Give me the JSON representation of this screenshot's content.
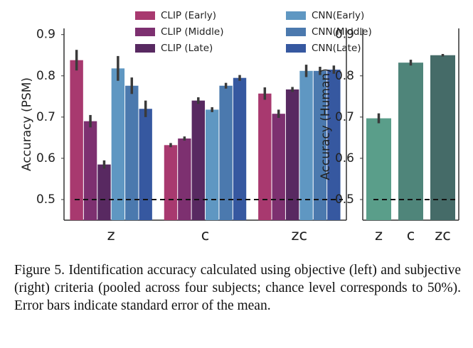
{
  "chart_data": [
    {
      "type": "bar",
      "ylabel": "Accuracy (PSM)",
      "categories": [
        "z",
        "c",
        "zc"
      ],
      "series": [
        {
          "name": "CLIP (Early)",
          "color": "#a8396f",
          "values": [
            0.838,
            0.632,
            0.757
          ],
          "errors": [
            0.025,
            0.005,
            0.015
          ]
        },
        {
          "name": "CLIP (Middle)",
          "color": "#7d3070",
          "values": [
            0.69,
            0.648,
            0.708
          ],
          "errors": [
            0.015,
            0.005,
            0.01
          ]
        },
        {
          "name": "CLIP (Late)",
          "color": "#582961",
          "values": [
            0.585,
            0.74,
            0.767
          ],
          "errors": [
            0.01,
            0.008,
            0.006
          ]
        },
        {
          "name": "CNN(Early)",
          "color": "#5f97c2",
          "values": [
            0.818,
            0.718,
            0.812
          ],
          "errors": [
            0.03,
            0.006,
            0.015
          ]
        },
        {
          "name": "CNN(Middle)",
          "color": "#4b79ae",
          "values": [
            0.776,
            0.776,
            0.812
          ],
          "errors": [
            0.02,
            0.007,
            0.01
          ]
        },
        {
          "name": "CNN(Late)",
          "color": "#3658a0",
          "values": [
            0.72,
            0.795,
            0.815
          ],
          "errors": [
            0.02,
            0.007,
            0.01
          ]
        }
      ],
      "ylim": [
        0.45,
        0.915
      ],
      "yticks": [
        0.5,
        0.6,
        0.7,
        0.8,
        0.9
      ],
      "hline": 0.5
    },
    {
      "type": "bar",
      "ylabel": "Accuracy (Human)",
      "categories": [
        "z",
        "c",
        "zc"
      ],
      "values": [
        0.697,
        0.832,
        0.85
      ],
      "errors": [
        0.012,
        0.007,
        0.003
      ],
      "colors": [
        "#5a9e8a",
        "#4f857a",
        "#456b68"
      ],
      "ylim": [
        0.45,
        0.915
      ],
      "yticks": [
        0.5,
        0.6,
        0.7,
        0.8,
        0.9
      ],
      "hline": 0.5
    }
  ],
  "caption": "Figure 5. Identification accuracy calculated using objective (left) and subjective (right) criteria (pooled across four subjects; chance level corresponds to 50%). Error bars indicate standard error of the mean."
}
